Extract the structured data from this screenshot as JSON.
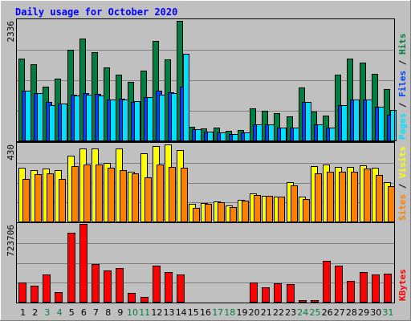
{
  "chart_data": {
    "type": "bar",
    "title": "Daily usage for October 2020",
    "colors": {
      "background": "#C0C0C0",
      "hits": "#008040",
      "files": "#0040FF",
      "pages": "#00E0FF",
      "visits": "#FFFF00",
      "sites": "#FF8000",
      "kbytes": "#FF0000",
      "title": "#0000FF",
      "weekday_label": "#000000",
      "weekend_label": "#008040",
      "separator": "#000000"
    },
    "days": [
      "1",
      "2",
      "3",
      "4",
      "5",
      "6",
      "7",
      "8",
      "9",
      "10",
      "11",
      "12",
      "13",
      "14",
      "15",
      "16",
      "17",
      "18",
      "19",
      "20",
      "21",
      "22",
      "23",
      "24",
      "25",
      "26",
      "27",
      "28",
      "29",
      "30",
      "31"
    ],
    "weekend_days": [
      "3",
      "4",
      "10",
      "11",
      "17",
      "18",
      "24",
      "25",
      "31"
    ],
    "panels": [
      {
        "key": "usage",
        "ymax_label": "2336",
        "ymax": 2336,
        "ylabel_parts": [
          {
            "text": "Pages",
            "color": "#00E0FF"
          },
          {
            "text": " / ",
            "color": "#000000"
          },
          {
            "text": "Files",
            "color": "#0040FF"
          },
          {
            "text": " / ",
            "color": "#000000"
          },
          {
            "text": "Hits",
            "color": "#008040"
          }
        ],
        "series": [
          {
            "name": "Hits",
            "color": "#008040",
            "values": [
              1605,
              1493,
              1065,
              1208,
              1779,
              1989,
              1733,
              1425,
              1289,
              1145,
              1374,
              1943,
              1581,
              2336,
              284,
              255,
              257,
              209,
              223,
              646,
              590,
              542,
              477,
              1036,
              572,
              494,
              1290,
              1608,
              1532,
              1306,
              1020
            ]
          },
          {
            "name": "Files",
            "color": "#0040FF",
            "values": [
              983,
              933,
              766,
              727,
              911,
              933,
              919,
              809,
              831,
              760,
              851,
              976,
              945,
              1061,
              235,
              187,
              171,
              140,
              170,
              330,
              322,
              265,
              272,
              766,
              322,
              270,
              701,
              810,
              803,
              662,
              515
            ]
          },
          {
            "name": "Pages",
            "color": "#00E0FF",
            "values": [
              983,
              933,
              697,
              727,
              885,
              896,
              885,
              809,
              809,
              771,
              851,
              896,
              933,
              1693,
              235,
              187,
              171,
              140,
              170,
              330,
              322,
              265,
              272,
              766,
              322,
              270,
              701,
              810,
              803,
              662,
              601
            ]
          }
        ]
      },
      {
        "key": "visitors",
        "ymax_label": "430",
        "ymax": 430,
        "ylabel_parts": [
          {
            "text": "Sites",
            "color": "#FF8000"
          },
          {
            "text": " / ",
            "color": "#000000"
          },
          {
            "text": "Visits",
            "color": "#FFFF00"
          }
        ],
        "series": [
          {
            "name": "Visits",
            "color": "#FFFF00",
            "values": [
              300,
              290,
              295,
              290,
              370,
              410,
              410,
              330,
              410,
              280,
              380,
              420,
              430,
              400,
              100,
              105,
              115,
              95,
              125,
              160,
              145,
              140,
              220,
              140,
              310,
              320,
              305,
              305,
              315,
              300,
              220
            ]
          },
          {
            "name": "Sites",
            "color": "#FF8000",
            "values": [
              240,
              265,
              270,
              240,
              310,
              320,
              320,
              300,
              290,
              270,
              250,
              320,
              305,
              300,
              80,
              100,
              110,
              85,
              120,
              150,
              145,
              140,
              205,
              130,
              270,
              280,
              280,
              280,
              295,
              260,
              200
            ]
          }
        ]
      },
      {
        "key": "volume",
        "ymax_label": "723706",
        "ymax": 723706,
        "ylabel_parts": [
          {
            "text": "KBytes",
            "color": "#FF0000"
          }
        ],
        "series": [
          {
            "name": "KBytes",
            "color": "#FF0000",
            "values": [
              190000,
              160000,
              260000,
              100000,
              650000,
              730000,
              360000,
              300000,
              320000,
              90000,
              50000,
              340000,
              280000,
              260000,
              2000,
              2000,
              2000,
              2000,
              2000,
              190000,
              140000,
              180000,
              170000,
              20000,
              20000,
              390000,
              340000,
              200000,
              280000,
              260000,
              270000
            ]
          }
        ]
      }
    ]
  }
}
